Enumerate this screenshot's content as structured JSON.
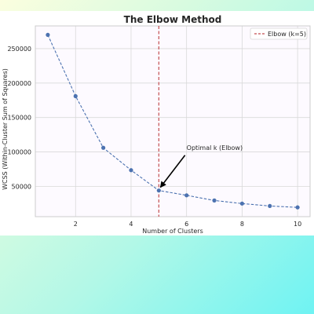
{
  "chart_data": {
    "type": "line",
    "title": "The Elbow Method",
    "xlabel": "Number of Clusters",
    "ylabel": "WCSS (Within-Cluster Sum of Squares)",
    "x": [
      1,
      2,
      3,
      4,
      5,
      6,
      7,
      8,
      9,
      10
    ],
    "series": [
      {
        "values": [
          270000,
          181000,
          106000,
          73500,
          44000,
          37000,
          29500,
          25000,
          21500,
          19500
        ],
        "color": "#4c72b0",
        "line_style": "dashed",
        "marker": "circle"
      }
    ],
    "xlim": [
      0.55,
      10.45
    ],
    "ylim": [
      6000,
      283000
    ],
    "xticks": [
      2,
      4,
      6,
      8,
      10
    ],
    "yticks": [
      50000,
      100000,
      150000,
      200000,
      250000
    ],
    "grid": true,
    "vline": {
      "x": 5,
      "color": "#c44e52",
      "line_style": "dashed",
      "label": "Elbow (k=5)"
    },
    "annotation": {
      "text": "Optimal k (Elbow)",
      "xy": [
        5,
        44000
      ],
      "text_xy": [
        6,
        102000
      ]
    },
    "legend": {
      "placement": "top-right",
      "entries": [
        "Elbow (k=5)"
      ]
    },
    "colors": {
      "plot_background": "#fdfaff",
      "grid": "#d9d9d9"
    }
  }
}
